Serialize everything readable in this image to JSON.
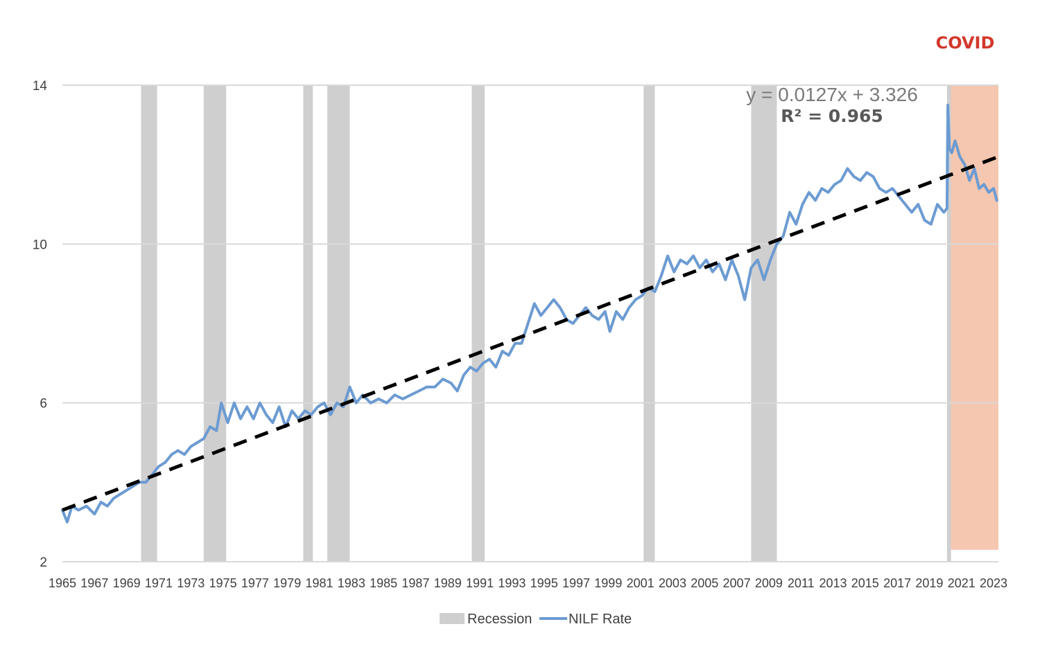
{
  "chart_data": {
    "type": "line",
    "title": "",
    "xlabel": "",
    "ylabel": "",
    "ylim": [
      2,
      14
    ],
    "xlim": [
      1965,
      2023.3
    ],
    "yticks": [
      "2",
      "6",
      "10",
      "14"
    ],
    "xticks": [
      "1965",
      "1967",
      "1969",
      "1971",
      "1973",
      "1975",
      "1977",
      "1979",
      "1981",
      "1983",
      "1985",
      "1987",
      "1989",
      "1991",
      "1993",
      "1995",
      "1997",
      "1999",
      "2001",
      "2003",
      "2005",
      "2007",
      "2009",
      "2011",
      "2013",
      "2015",
      "2017",
      "2019",
      "2021",
      "2023"
    ],
    "grid": true,
    "legend_position": "bottom",
    "legend": [
      {
        "label": "Recession",
        "marker": "box",
        "color": "#d0cfcf"
      },
      {
        "label": "NILF Rate",
        "marker": "line",
        "color": "#6c9bd2"
      }
    ],
    "annotations": {
      "covid_label": "COVID",
      "equation": "y = 0.0127x + 3.326",
      "r_squared": "R² = 0.965"
    },
    "covid_period": {
      "start": 2020.2,
      "end": 2023.3,
      "ymin": 2.3,
      "ymax": 14,
      "color": "#f5c7b0"
    },
    "recessions": [
      {
        "start": 1969.9,
        "end": 1970.9
      },
      {
        "start": 1973.8,
        "end": 1975.2
      },
      {
        "start": 1980.0,
        "end": 1980.6
      },
      {
        "start": 1981.5,
        "end": 1982.9
      },
      {
        "start": 1990.5,
        "end": 1991.3
      },
      {
        "start": 2001.2,
        "end": 2001.9
      },
      {
        "start": 2007.9,
        "end": 2009.5
      },
      {
        "start": 2020.1,
        "end": 2020.35
      }
    ],
    "trendline": {
      "x": [
        1965,
        2023.3
      ],
      "y": [
        3.3,
        12.2
      ],
      "color": "#000000"
    },
    "series": [
      {
        "name": "NILF Rate",
        "color": "#6c9bd2",
        "x": [
          1965.0,
          1965.3,
          1965.6,
          1966.0,
          1966.5,
          1967.0,
          1967.4,
          1967.8,
          1968.2,
          1968.6,
          1969.0,
          1969.4,
          1969.8,
          1970.2,
          1970.6,
          1971.0,
          1971.4,
          1971.8,
          1972.2,
          1972.6,
          1973.0,
          1973.4,
          1973.8,
          1974.2,
          1974.6,
          1974.9,
          1975.3,
          1975.7,
          1976.1,
          1976.5,
          1976.9,
          1977.3,
          1977.7,
          1978.1,
          1978.5,
          1978.9,
          1979.3,
          1979.7,
          1980.1,
          1980.5,
          1980.9,
          1981.3,
          1981.7,
          1982.1,
          1982.5,
          1982.9,
          1983.3,
          1983.7,
          1984.2,
          1984.7,
          1985.2,
          1985.7,
          1986.2,
          1986.7,
          1987.2,
          1987.7,
          1988.2,
          1988.7,
          1989.2,
          1989.6,
          1990.0,
          1990.4,
          1990.8,
          1991.2,
          1991.6,
          1992.0,
          1992.4,
          1992.8,
          1993.2,
          1993.6,
          1994.0,
          1994.4,
          1994.8,
          1995.2,
          1995.6,
          1996.0,
          1996.4,
          1996.8,
          1997.2,
          1997.6,
          1998.0,
          1998.4,
          1998.8,
          1999.1,
          1999.5,
          1999.9,
          2000.3,
          2000.7,
          2001.1,
          2001.5,
          2001.9,
          2002.3,
          2002.7,
          2003.1,
          2003.5,
          2003.9,
          2004.3,
          2004.7,
          2005.1,
          2005.5,
          2005.9,
          2006.3,
          2006.7,
          2007.1,
          2007.5,
          2007.9,
          2008.3,
          2008.7,
          2009.1,
          2009.5,
          2009.9,
          2010.3,
          2010.7,
          2011.1,
          2011.5,
          2011.9,
          2012.3,
          2012.7,
          2013.1,
          2013.5,
          2013.9,
          2014.3,
          2014.7,
          2015.1,
          2015.5,
          2015.9,
          2016.3,
          2016.7,
          2017.1,
          2017.5,
          2017.9,
          2018.3,
          2018.7,
          2019.1,
          2019.5,
          2019.9,
          2020.1,
          2020.15,
          2020.25,
          2020.4,
          2020.6,
          2020.9,
          2021.2,
          2021.5,
          2021.8,
          2022.1,
          2022.4,
          2022.7,
          2023.0,
          2023.2
        ],
        "y": [
          3.3,
          3.0,
          3.4,
          3.3,
          3.4,
          3.2,
          3.5,
          3.4,
          3.6,
          3.7,
          3.8,
          3.9,
          4.0,
          4.0,
          4.2,
          4.4,
          4.5,
          4.7,
          4.8,
          4.7,
          4.9,
          5.0,
          5.1,
          5.4,
          5.3,
          6.0,
          5.5,
          6.0,
          5.6,
          5.9,
          5.6,
          6.0,
          5.7,
          5.5,
          5.9,
          5.4,
          5.8,
          5.6,
          5.8,
          5.7,
          5.9,
          6.0,
          5.7,
          6.0,
          5.9,
          6.4,
          6.0,
          6.2,
          6.0,
          6.1,
          6.0,
          6.2,
          6.1,
          6.2,
          6.3,
          6.4,
          6.4,
          6.6,
          6.5,
          6.3,
          6.7,
          6.9,
          6.8,
          7.0,
          7.1,
          6.9,
          7.3,
          7.2,
          7.5,
          7.5,
          8.0,
          8.5,
          8.2,
          8.4,
          8.6,
          8.4,
          8.1,
          8.0,
          8.2,
          8.4,
          8.2,
          8.1,
          8.3,
          7.8,
          8.3,
          8.1,
          8.4,
          8.6,
          8.7,
          8.9,
          8.8,
          9.2,
          9.7,
          9.3,
          9.6,
          9.5,
          9.7,
          9.4,
          9.6,
          9.3,
          9.5,
          9.1,
          9.6,
          9.2,
          8.6,
          9.4,
          9.6,
          9.1,
          9.6,
          10.0,
          10.2,
          10.8,
          10.5,
          11.0,
          11.3,
          11.1,
          11.4,
          11.3,
          11.5,
          11.6,
          11.9,
          11.7,
          11.6,
          11.8,
          11.7,
          11.4,
          11.3,
          11.4,
          11.2,
          11.0,
          10.8,
          11.0,
          10.6,
          10.5,
          11.0,
          10.8,
          10.9,
          13.5,
          12.4,
          12.3,
          12.6,
          12.2,
          12.0,
          11.6,
          11.9,
          11.4,
          11.5,
          11.3,
          11.4,
          11.1
        ]
      }
    ]
  }
}
